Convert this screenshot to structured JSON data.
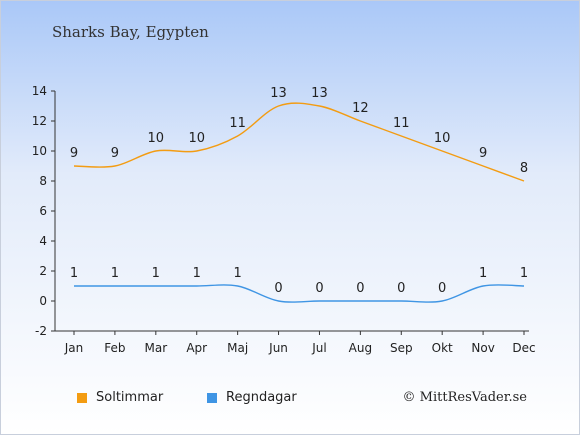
{
  "header": {
    "title": "Sharks Bay, Egypten"
  },
  "footer": {
    "copyright": "© MittResVader.se"
  },
  "colors": {
    "sun": "#f39c12",
    "rain": "#3f95e4"
  },
  "chart_data": {
    "type": "line",
    "categories": [
      "Jan",
      "Feb",
      "Mar",
      "Apr",
      "Maj",
      "Jun",
      "Jul",
      "Aug",
      "Sep",
      "Okt",
      "Nov",
      "Dec"
    ],
    "ylim": [
      -2,
      14
    ],
    "yticks": [
      -2,
      0,
      2,
      4,
      6,
      8,
      10,
      12,
      14
    ],
    "grid": false,
    "legend_position": "bottom-left",
    "series": [
      {
        "name": "Soltimmar",
        "color": "#f39c12",
        "values": [
          9,
          9,
          10,
          10,
          11,
          13,
          13,
          12,
          11,
          10,
          9,
          8
        ]
      },
      {
        "name": "Regndagar",
        "color": "#3f95e4",
        "values": [
          1,
          1,
          1,
          1,
          1,
          0,
          0,
          0,
          0,
          0,
          1,
          1
        ]
      }
    ]
  }
}
